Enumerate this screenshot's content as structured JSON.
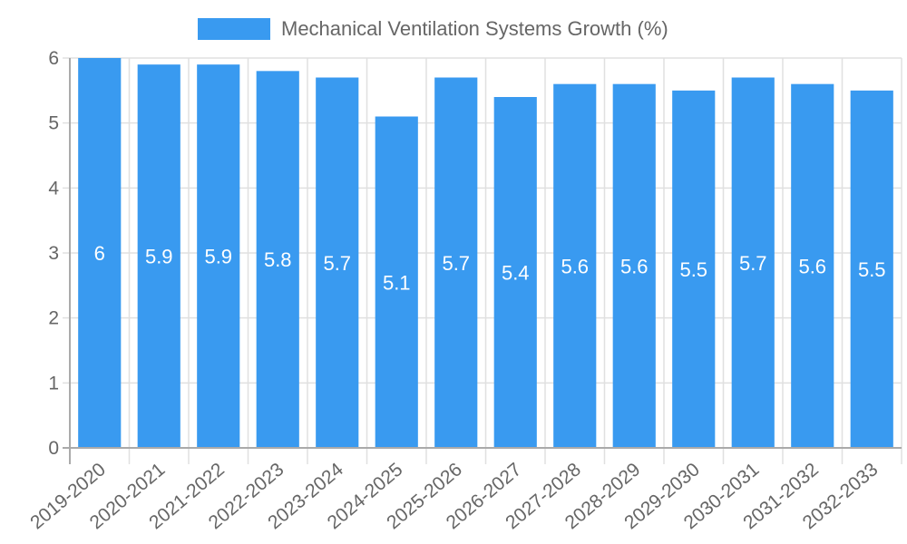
{
  "chart_data": {
    "type": "bar",
    "title": "",
    "xlabel": "",
    "ylabel": "",
    "ylim": [
      0,
      6
    ],
    "yticks": [
      0,
      1,
      2,
      3,
      4,
      5,
      6
    ],
    "grid": true,
    "legend_position": "top",
    "categories": [
      "2019-2020",
      "2020-2021",
      "2021-2022",
      "2022-2023",
      "2023-2024",
      "2024-2025",
      "2025-2026",
      "2026-2027",
      "2027-2028",
      "2028-2029",
      "2029-2030",
      "2030-2031",
      "2031-2032",
      "2032-2033"
    ],
    "series": [
      {
        "name": "Mechanical Ventilation Systems Growth (%)",
        "color": "#399af0",
        "values": [
          6,
          5.9,
          5.9,
          5.8,
          5.7,
          5.1,
          5.7,
          5.4,
          5.6,
          5.6,
          5.5,
          5.7,
          5.6,
          5.5
        ]
      }
    ]
  },
  "legend": {
    "label": "Mechanical Ventilation Systems Growth (%)"
  }
}
